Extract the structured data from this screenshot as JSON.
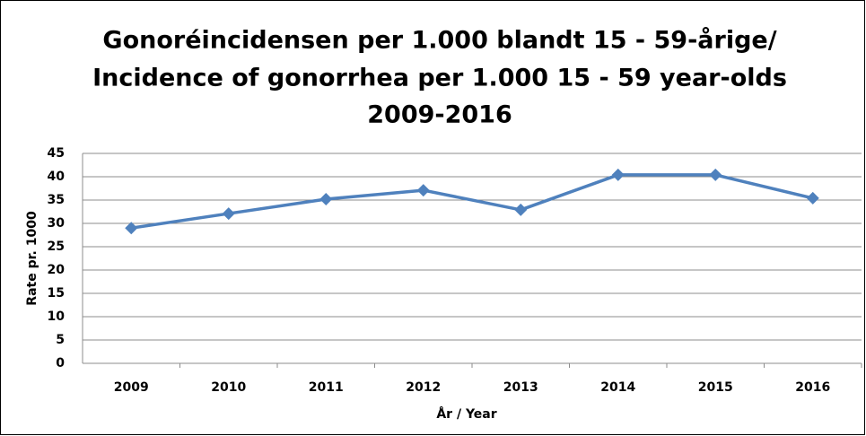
{
  "chart_data": {
    "type": "line",
    "title": [
      "Gonoréincidensen per 1.000 blandt 15 - 59-årige/",
      "Incidence of gonorrhea per 1.000  15 - 59 year-olds",
      "2009-2016"
    ],
    "x_label": "År / Year",
    "y_label": "Rate pr. 1000",
    "categories": [
      "2009",
      "2010",
      "2011",
      "2012",
      "2013",
      "2014",
      "2015",
      "2016"
    ],
    "values": [
      29.0,
      32.1,
      35.2,
      37.1,
      32.9,
      40.4,
      40.4,
      35.4
    ],
    "color": "#4f81bd",
    "marker": "diamond",
    "ylim": [
      0,
      45
    ],
    "yticks": [
      0,
      5,
      10,
      15,
      20,
      25,
      30,
      35,
      40,
      45
    ],
    "grid": true
  }
}
